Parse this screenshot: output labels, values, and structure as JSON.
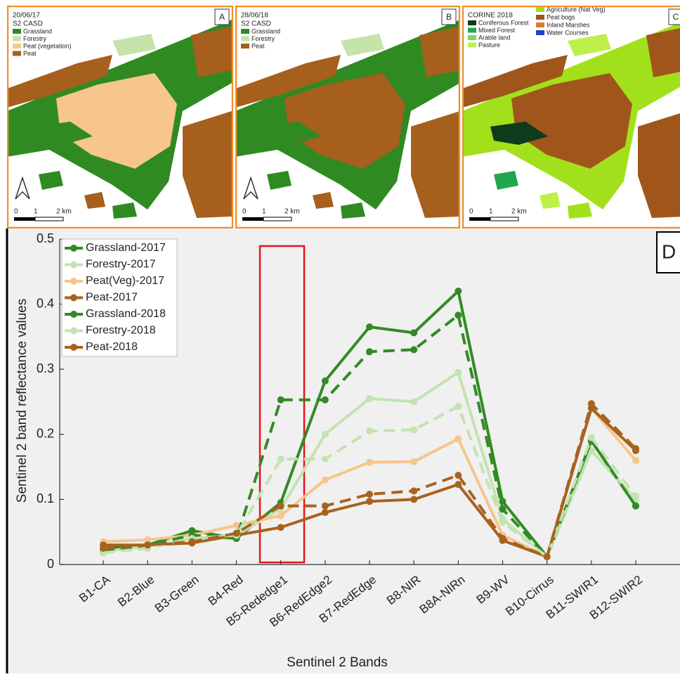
{
  "maps": [
    {
      "date": "20/06/17",
      "source": "S2 CASD",
      "letter": "A",
      "legend": [
        {
          "label": "Grassland",
          "color": "#2f8a22"
        },
        {
          "label": "Forestry",
          "color": "#c5e3aa"
        },
        {
          "label": "Peat (vegetation)",
          "color": "#f6c68c"
        },
        {
          "label": "Peat",
          "color": "#a65f1c"
        }
      ],
      "scale": [
        "0",
        "1",
        "2 km"
      ]
    },
    {
      "date": "28/06/18",
      "source": "S2 CASD",
      "letter": "B",
      "legend": [
        {
          "label": "Grassland",
          "color": "#2f8a22"
        },
        {
          "label": "Forestry",
          "color": "#c5e3aa"
        },
        {
          "label": "Peat",
          "color": "#a65f1c"
        }
      ],
      "scale": [
        "0",
        "1",
        "2 km"
      ]
    },
    {
      "source": "CORINE 2018",
      "letter": "C",
      "legend": [
        {
          "label": "Coniferous Forest",
          "color": "#0d3b1c"
        },
        {
          "label": "Mixed Forest",
          "color": "#22a84c"
        },
        {
          "label": "Arable land",
          "color": "#7fd65a"
        },
        {
          "label": "Pasture",
          "color": "#bff04a"
        },
        {
          "label": "Agriculture (Nat Veg)",
          "color": "#a3e01c"
        },
        {
          "label": "Peat bogs",
          "color": "#a0561b"
        },
        {
          "label": "Inland Marshes",
          "color": "#e07b2a"
        },
        {
          "label": "Water Courses",
          "color": "#1f3fcf"
        }
      ],
      "scale": [
        "0",
        "1",
        "2 km"
      ]
    }
  ],
  "chart_data": {
    "type": "line",
    "annotation": "D",
    "xlabel": "Sentinel 2 Bands",
    "ylabel": "Sentinel 2 band reflectance values",
    "categories": [
      "B1-CA",
      "B2-Blue",
      "B3-Green",
      "B4-Red",
      "B5-Rededge1",
      "B6-RedEdge2",
      "B7-RedEdge",
      "B8-NIR",
      "B8A-NIRn",
      "B9-WV",
      "B10-Cirrus",
      "B11-SWIR1",
      "B12-SWIR2"
    ],
    "ylim": [
      0,
      0.5
    ],
    "yticks": [
      0,
      0.1,
      0.2,
      0.3,
      0.4,
      0.5
    ],
    "legend": "upper left",
    "series": [
      {
        "name": "Grassland-2017",
        "color": "#338a25",
        "dashed": false,
        "values": [
          0.025,
          0.03,
          0.052,
          0.04,
          0.095,
          0.282,
          0.365,
          0.356,
          0.42,
          0.097,
          0.012,
          0.19,
          0.09
        ]
      },
      {
        "name": "Forestry-2017",
        "color": "#c3e3b0",
        "dashed": false,
        "values": [
          0.02,
          0.028,
          0.04,
          0.045,
          0.085,
          0.2,
          0.255,
          0.25,
          0.295,
          0.07,
          0.012,
          0.175,
          0.1
        ]
      },
      {
        "name": "Peat(Veg)-2017",
        "color": "#f7c58a",
        "dashed": false,
        "values": [
          0.035,
          0.038,
          0.045,
          0.06,
          0.075,
          0.13,
          0.157,
          0.158,
          0.193,
          0.045,
          0.012,
          0.24,
          0.16
        ]
      },
      {
        "name": "Peat-2017",
        "color": "#a8621f",
        "dashed": false,
        "values": [
          0.03,
          0.03,
          0.033,
          0.045,
          0.057,
          0.08,
          0.097,
          0.1,
          0.123,
          0.037,
          0.012,
          0.24,
          0.175
        ]
      },
      {
        "name": "Grassland-2018",
        "color": "#338a25",
        "dashed": true,
        "values": [
          0.02,
          0.03,
          0.045,
          0.04,
          0.253,
          0.253,
          0.327,
          0.33,
          0.383,
          0.085,
          0.012,
          0.19,
          0.09
        ]
      },
      {
        "name": "Forestry-2018",
        "color": "#c3e3b0",
        "dashed": true,
        "values": [
          0.018,
          0.025,
          0.04,
          0.045,
          0.162,
          0.162,
          0.205,
          0.207,
          0.243,
          0.065,
          0.012,
          0.195,
          0.105
        ]
      },
      {
        "name": "Peat-2018",
        "color": "#a8621f",
        "dashed": true,
        "values": [
          0.025,
          0.03,
          0.035,
          0.048,
          0.09,
          0.09,
          0.108,
          0.113,
          0.137,
          0.04,
          0.012,
          0.247,
          0.178
        ]
      }
    ]
  }
}
